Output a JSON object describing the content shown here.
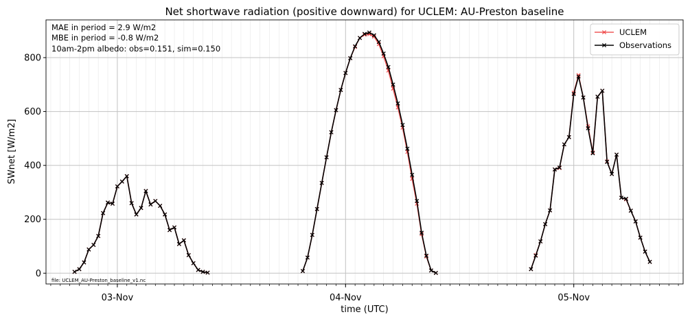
{
  "chart_data": {
    "type": "line",
    "title": "Net shortwave radiation (positive downward) for UCLEM: AU-Preston baseline",
    "xlabel": "time (UTC)",
    "ylabel": "SWnet [W/m2]",
    "x_unit": "hours since 03-Nov 00:00 UTC",
    "xlim": [
      -7.5,
      59.5
    ],
    "ylim": [
      -40,
      940
    ],
    "y_ticks": [
      0,
      200,
      400,
      600,
      800
    ],
    "x_ticks": [
      {
        "hour": 0,
        "label": "03-Nov"
      },
      {
        "hour": 24,
        "label": "04-Nov"
      },
      {
        "hour": 48,
        "label": "05-Nov"
      }
    ],
    "grid": true,
    "legend_position": "top-right",
    "annotations": [
      "MAE in period = 2.9 W/m2",
      "MBE in period = -0.8 W/m2",
      "10am-2pm albedo: obs=0.151, sim=0.150"
    ],
    "file_note": "file: UCLEM_AU-Preston_baseline_v1.nc",
    "series": [
      {
        "name": "UCLEM",
        "color": "#ee3b3b",
        "points": [
          [
            -4.5,
            5
          ],
          [
            -4,
            15
          ],
          [
            -3.5,
            40
          ],
          [
            -3,
            88
          ],
          [
            -2.5,
            105
          ],
          [
            -2,
            138
          ],
          [
            -1.5,
            223
          ],
          [
            -1,
            262
          ],
          [
            -0.5,
            258
          ],
          [
            0,
            322
          ],
          [
            0.5,
            340
          ],
          [
            1,
            360
          ],
          [
            1.5,
            260
          ],
          [
            2,
            218
          ],
          [
            2.5,
            242
          ],
          [
            3,
            305
          ],
          [
            3.5,
            255
          ],
          [
            4,
            268
          ],
          [
            4.5,
            250
          ],
          [
            5,
            218
          ],
          [
            5.5,
            160
          ],
          [
            6,
            170
          ],
          [
            6.5,
            108
          ],
          [
            7,
            122
          ],
          [
            7.5,
            67
          ],
          [
            8,
            37
          ],
          [
            8.5,
            12
          ],
          [
            9,
            5
          ],
          [
            9.5,
            2
          ],
          [
            19.5,
            8
          ],
          [
            20,
            58
          ],
          [
            20.5,
            142
          ],
          [
            21,
            238
          ],
          [
            21.5,
            335
          ],
          [
            22,
            430
          ],
          [
            22.5,
            523
          ],
          [
            23,
            605
          ],
          [
            23.5,
            680
          ],
          [
            24,
            743
          ],
          [
            24.5,
            798
          ],
          [
            25,
            840
          ],
          [
            25.5,
            873
          ],
          [
            26,
            885
          ],
          [
            26.5,
            887
          ],
          [
            27,
            878
          ],
          [
            27.5,
            850
          ],
          [
            28,
            805
          ],
          [
            28.5,
            752
          ],
          [
            29,
            685
          ],
          [
            29.5,
            615
          ],
          [
            30,
            540
          ],
          [
            30.5,
            450
          ],
          [
            31,
            350
          ],
          [
            31.5,
            258
          ],
          [
            32,
            145
          ],
          [
            32.5,
            62
          ],
          [
            33,
            10
          ],
          [
            33.5,
            1
          ],
          [
            43.5,
            15
          ],
          [
            44,
            67
          ],
          [
            44.5,
            118
          ],
          [
            45,
            182
          ],
          [
            45.5,
            233
          ],
          [
            46,
            385
          ],
          [
            46.5,
            390
          ],
          [
            47,
            478
          ],
          [
            47.5,
            505
          ],
          [
            48,
            670
          ],
          [
            48.5,
            735
          ],
          [
            49,
            652
          ],
          [
            49.5,
            545
          ],
          [
            50,
            448
          ],
          [
            50.5,
            655
          ],
          [
            51,
            677
          ],
          [
            51.5,
            415
          ],
          [
            52,
            368
          ],
          [
            52.5,
            440
          ],
          [
            53,
            280
          ],
          [
            53.5,
            274
          ],
          [
            54,
            232
          ],
          [
            54.5,
            192
          ],
          [
            55,
            132
          ],
          [
            55.5,
            80
          ],
          [
            56,
            42
          ]
        ]
      },
      {
        "name": "Observations",
        "color": "#000000",
        "points": [
          [
            -4.5,
            5
          ],
          [
            -4,
            15
          ],
          [
            -3.5,
            40
          ],
          [
            -3,
            88
          ],
          [
            -2.5,
            105
          ],
          [
            -2,
            138
          ],
          [
            -1.5,
            223
          ],
          [
            -1,
            262
          ],
          [
            -0.5,
            258
          ],
          [
            0,
            322
          ],
          [
            0.5,
            340
          ],
          [
            1,
            360
          ],
          [
            1.5,
            260
          ],
          [
            2,
            218
          ],
          [
            2.5,
            242
          ],
          [
            3,
            305
          ],
          [
            3.5,
            255
          ],
          [
            4,
            268
          ],
          [
            4.5,
            250
          ],
          [
            5,
            218
          ],
          [
            5.5,
            160
          ],
          [
            6,
            170
          ],
          [
            6.5,
            108
          ],
          [
            7,
            122
          ],
          [
            7.5,
            67
          ],
          [
            8,
            37
          ],
          [
            8.5,
            12
          ],
          [
            9,
            5
          ],
          [
            9.5,
            2
          ],
          [
            19.5,
            8
          ],
          [
            20,
            58
          ],
          [
            20.5,
            142
          ],
          [
            21,
            238
          ],
          [
            21.5,
            335
          ],
          [
            22,
            430
          ],
          [
            22.5,
            523
          ],
          [
            23,
            605
          ],
          [
            23.5,
            680
          ],
          [
            24,
            743
          ],
          [
            24.5,
            798
          ],
          [
            25,
            842
          ],
          [
            25.5,
            873
          ],
          [
            26,
            888
          ],
          [
            26.5,
            893
          ],
          [
            27,
            883
          ],
          [
            27.5,
            858
          ],
          [
            28,
            815
          ],
          [
            28.5,
            765
          ],
          [
            29,
            700
          ],
          [
            29.5,
            630
          ],
          [
            30,
            550
          ],
          [
            30.5,
            462
          ],
          [
            31,
            365
          ],
          [
            31.5,
            268
          ],
          [
            32,
            150
          ],
          [
            32.5,
            65
          ],
          [
            33,
            10
          ],
          [
            33.5,
            1
          ],
          [
            43.5,
            15
          ],
          [
            44,
            65
          ],
          [
            44.5,
            118
          ],
          [
            45,
            182
          ],
          [
            45.5,
            233
          ],
          [
            46,
            385
          ],
          [
            46.5,
            392
          ],
          [
            47,
            478
          ],
          [
            47.5,
            505
          ],
          [
            48,
            665
          ],
          [
            48.5,
            730
          ],
          [
            49,
            652
          ],
          [
            49.5,
            538
          ],
          [
            50,
            445
          ],
          [
            50.5,
            655
          ],
          [
            51,
            677
          ],
          [
            51.5,
            413
          ],
          [
            52,
            368
          ],
          [
            52.5,
            440
          ],
          [
            53,
            280
          ],
          [
            53.5,
            276
          ],
          [
            54,
            232
          ],
          [
            54.5,
            192
          ],
          [
            55,
            132
          ],
          [
            55.5,
            80
          ],
          [
            56,
            42
          ]
        ]
      }
    ]
  }
}
